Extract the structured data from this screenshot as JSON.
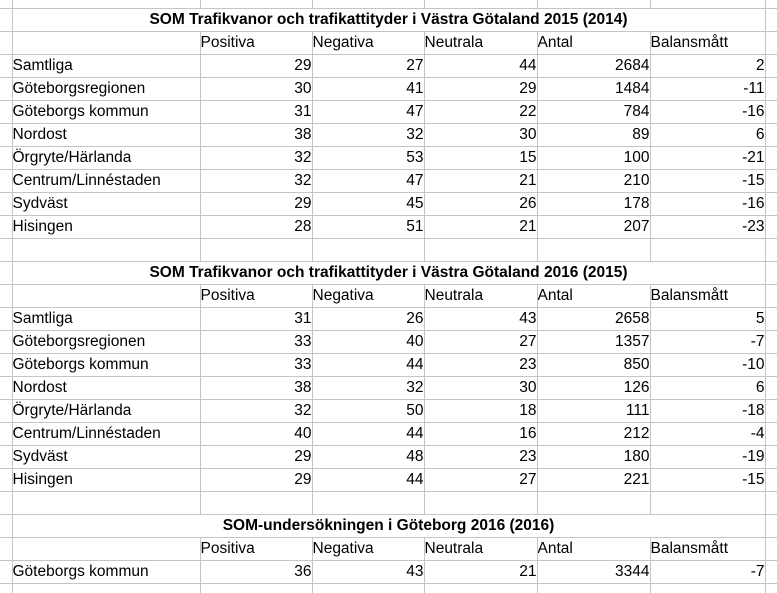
{
  "app": {
    "kind": "spreadsheet",
    "colors": {
      "background": "#ffffff",
      "gridline": "#c2c6ca",
      "text": "#000000"
    }
  },
  "columns": {
    "headers": [
      "Positiva",
      "Negativa",
      "Neutrala",
      "Antal",
      "Balansmått"
    ]
  },
  "tables": [
    {
      "title": "SOM Trafikvanor och trafikattityder i Västra Götaland 2015 (2014)",
      "rows": [
        {
          "label": "Samtliga",
          "values": [
            29,
            27,
            44,
            2684,
            2
          ]
        },
        {
          "label": "Göteborgsregionen",
          "values": [
            30,
            41,
            29,
            1484,
            -11
          ]
        },
        {
          "label": "Göteborgs kommun",
          "values": [
            31,
            47,
            22,
            784,
            -16
          ]
        },
        {
          "label": "Nordost",
          "values": [
            38,
            32,
            30,
            89,
            6
          ]
        },
        {
          "label": "Örgryte/Härlanda",
          "values": [
            32,
            53,
            15,
            100,
            -21
          ]
        },
        {
          "label": "Centrum/Linnéstaden",
          "values": [
            32,
            47,
            21,
            210,
            -15
          ]
        },
        {
          "label": "Sydväst",
          "values": [
            29,
            45,
            26,
            178,
            -16
          ]
        },
        {
          "label": "Hisingen",
          "values": [
            28,
            51,
            21,
            207,
            -23
          ]
        }
      ]
    },
    {
      "title": "SOM Trafikvanor och trafikattityder i Västra Götaland 2016 (2015)",
      "rows": [
        {
          "label": "Samtliga",
          "values": [
            31,
            26,
            43,
            2658,
            5
          ]
        },
        {
          "label": "Göteborgsregionen",
          "values": [
            33,
            40,
            27,
            1357,
            -7
          ]
        },
        {
          "label": "Göteborgs kommun",
          "values": [
            33,
            44,
            23,
            850,
            -10
          ]
        },
        {
          "label": "Nordost",
          "values": [
            38,
            32,
            30,
            126,
            6
          ]
        },
        {
          "label": "Örgryte/Härlanda",
          "values": [
            32,
            50,
            18,
            111,
            -18
          ]
        },
        {
          "label": "Centrum/Linnéstaden",
          "values": [
            40,
            44,
            16,
            212,
            -4
          ]
        },
        {
          "label": "Sydväst",
          "values": [
            29,
            48,
            23,
            180,
            -19
          ]
        },
        {
          "label": "Hisingen",
          "values": [
            29,
            44,
            27,
            221,
            -15
          ]
        }
      ]
    },
    {
      "title": "SOM-undersökningen i Göteborg 2016 (2016)",
      "rows": [
        {
          "label": "Göteborgs kommun",
          "values": [
            36,
            43,
            21,
            3344,
            -7
          ]
        }
      ]
    }
  ]
}
